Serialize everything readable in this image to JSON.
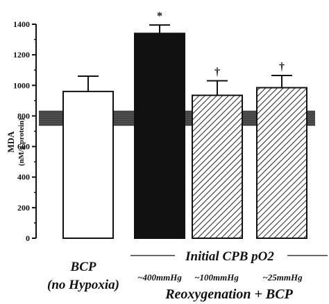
{
  "chart_data": {
    "type": "bar",
    "ylabel": "MDA",
    "ylabel_sub": "(nM/g protein)",
    "ylim": [
      0,
      1400
    ],
    "yticks": [
      "0",
      "200",
      "400",
      "600",
      "800",
      "1000",
      "1200",
      "1400"
    ],
    "categories": [
      "BCP (no Hypoxia)",
      "~400mmHg",
      "~100mmHg",
      "~25mmHg"
    ],
    "values": [
      960,
      1340,
      935,
      985
    ],
    "errors": [
      100,
      55,
      95,
      80
    ],
    "fills": [
      "white",
      "black",
      "hatched",
      "hatched"
    ],
    "annotations": [
      "",
      "*",
      "†",
      "†"
    ],
    "reference_band": [
      735,
      835
    ],
    "group_label": "Initial CPB pO2",
    "group_sublabel": "Reoxygenation + BCP",
    "first_label_lines": [
      "BCP",
      "(no Hypoxia)"
    ],
    "pressure_labels": [
      "~400mmHg",
      "~100mmHg",
      "~25mmHg"
    ]
  }
}
